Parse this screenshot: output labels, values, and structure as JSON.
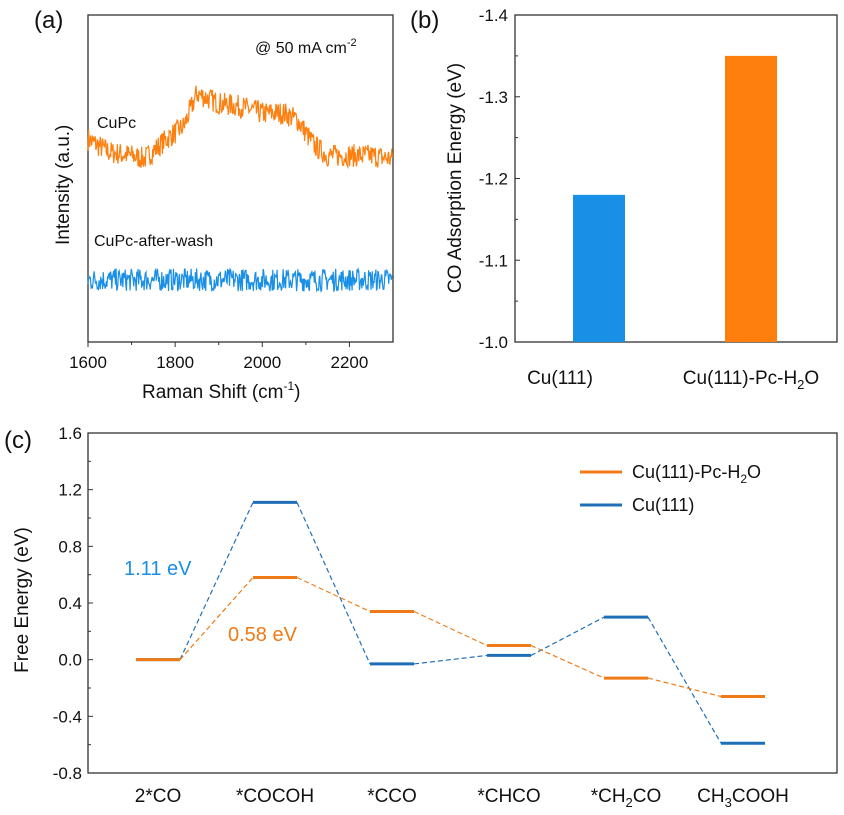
{
  "colors": {
    "orange": "#ff7f0e",
    "blue": "#1a8fe6",
    "blue_dark": "#1f6fb8",
    "orange_c": "#f07b16"
  },
  "chart_data": [
    {
      "panel": "(a)",
      "type": "line",
      "title": "",
      "annotation": "@ 50 mA cm",
      "annotation_sup": "-2",
      "xlabel": "Raman Shift (cm",
      "xlabel_sup": "-1",
      "xlabel_end": ")",
      "ylabel": "Intensity (a.u.)",
      "xlim": [
        1600,
        2300
      ],
      "xticks": [
        "1600",
        "1800",
        "2000",
        "2200"
      ],
      "grid": false,
      "series": [
        {
          "name": "CuPc",
          "color": "#ff7f0e",
          "x": [
            1600,
            1650,
            1700,
            1730,
            1780,
            1820,
            1850,
            1900,
            1950,
            2000,
            2050,
            2080,
            2120,
            2150,
            2200,
            2250,
            2300
          ],
          "y": [
            0.62,
            0.58,
            0.57,
            0.56,
            0.62,
            0.66,
            0.76,
            0.73,
            0.72,
            0.7,
            0.7,
            0.68,
            0.6,
            0.57,
            0.57,
            0.57,
            0.56
          ]
        },
        {
          "name": "CuPc-after-wash",
          "color": "#1a8fe6",
          "x": [
            1600,
            2300
          ],
          "y": [
            0.19,
            0.19
          ]
        }
      ]
    },
    {
      "panel": "(b)",
      "type": "bar",
      "categories": [
        "Cu(111)",
        "Cu(111)-Pc-H"
      ],
      "category_suffix": [
        "",
        "2"
      ],
      "category_end": [
        "",
        "O"
      ],
      "values": [
        -1.18,
        -1.35
      ],
      "colors": [
        "#1a8fe6",
        "#ff7f0e"
      ],
      "ylabel": "CO Adsorption Energy (eV)",
      "ylim": [
        -1.0,
        -1.4
      ],
      "yticks": [
        "-1.4",
        "-1.3",
        "-1.2",
        "-1.1",
        "-1.0"
      ],
      "grid": false
    },
    {
      "panel": "(c)",
      "type": "line",
      "subtype": "energy-level-diagram",
      "categories": [
        "2*CO",
        "*COCOH",
        "*CCO",
        "*CHCO",
        "*CH2CO",
        "CH3COOH"
      ],
      "category_parts": [
        [
          "2*CO",
          "",
          ""
        ],
        [
          "*COCOH",
          "",
          ""
        ],
        [
          "*CCO",
          "",
          ""
        ],
        [
          "*CHCO",
          "",
          ""
        ],
        [
          "*CH",
          "2",
          "CO"
        ],
        [
          "CH",
          "3",
          "COOH"
        ]
      ],
      "ylabel": "Free Energy (eV)",
      "ylim": [
        -0.8,
        1.6
      ],
      "yticks": [
        "-0.8",
        "-0.4",
        "0.0",
        "0.4",
        "0.8",
        "1.2",
        "1.6"
      ],
      "legend_position": "top-right",
      "series": [
        {
          "name": "Cu(111)-Pc-H",
          "name_sub": "2",
          "name_end": "O",
          "color": "#f07b16",
          "values": [
            0.0,
            0.58,
            0.34,
            0.1,
            -0.13,
            -0.26
          ]
        },
        {
          "name": "Cu(111)",
          "name_sub": "",
          "name_end": "",
          "color": "#1f6fb8",
          "values": [
            0.0,
            1.11,
            -0.03,
            0.03,
            0.3,
            -0.59
          ]
        }
      ],
      "annotations": [
        {
          "text": "1.11 eV",
          "color": "#1a8fe6"
        },
        {
          "text": "0.58 eV",
          "color": "#f07b16"
        }
      ]
    }
  ]
}
